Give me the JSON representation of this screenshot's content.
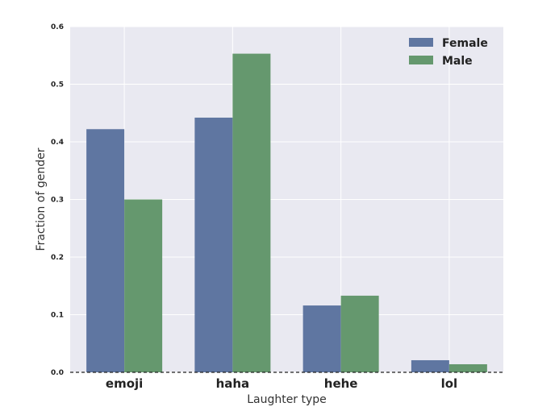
{
  "chart_data": {
    "type": "bar",
    "title": "",
    "xlabel": "Laughter type",
    "ylabel": "Fraction of gender",
    "categories": [
      "emoji",
      "haha",
      "hehe",
      "lol"
    ],
    "series": [
      {
        "name": "Female",
        "values": [
          0.422,
          0.442,
          0.116,
          0.021
        ],
        "color": "#5f76a1"
      },
      {
        "name": "Male",
        "values": [
          0.3,
          0.553,
          0.133,
          0.014
        ],
        "color": "#65986e"
      }
    ],
    "ylim": [
      0,
      0.6
    ],
    "yticks": [
      "0.0",
      "0.1",
      "0.2",
      "0.3",
      "0.4",
      "0.5",
      "0.6"
    ],
    "grid": true,
    "legend_position": "top-right",
    "background_color": "#e9e9f1",
    "baseline": "dashed"
  }
}
